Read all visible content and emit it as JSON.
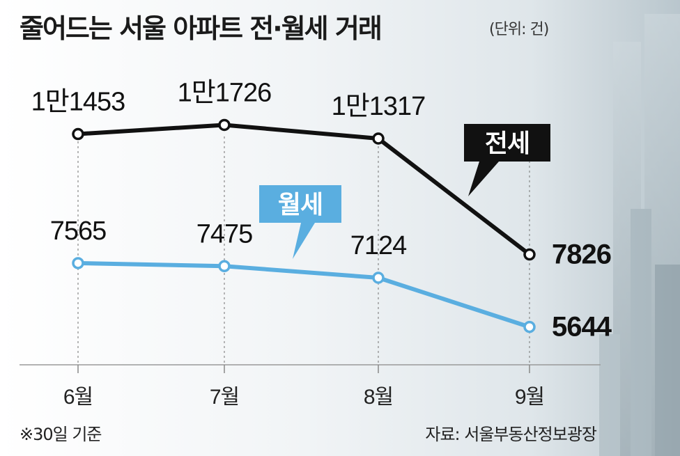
{
  "title": "줄어드는 서울 아파트 전·월세 거래",
  "unit_note": "(단위: 건)",
  "footnote": "※30일 기준",
  "source": "자료: 서울부동산정보광장",
  "chart_data": {
    "type": "line",
    "categories": [
      "6월",
      "7월",
      "8월",
      "9월"
    ],
    "series": [
      {
        "name": "전세",
        "values": [
          11453,
          11726,
          11317,
          7826
        ],
        "value_labels": [
          "1만1453",
          "1만1726",
          "1만1317",
          "7826"
        ],
        "color": "#111111"
      },
      {
        "name": "월세",
        "values": [
          7565,
          7475,
          7124,
          5644
        ],
        "value_labels": [
          "7565",
          "7475",
          "7124",
          "5644"
        ],
        "color": "#5aaee0"
      }
    ],
    "xlabel": "",
    "ylabel": "",
    "grid": "vertical dashed lines at each category",
    "legend": "callout boxes pointing to each line"
  }
}
